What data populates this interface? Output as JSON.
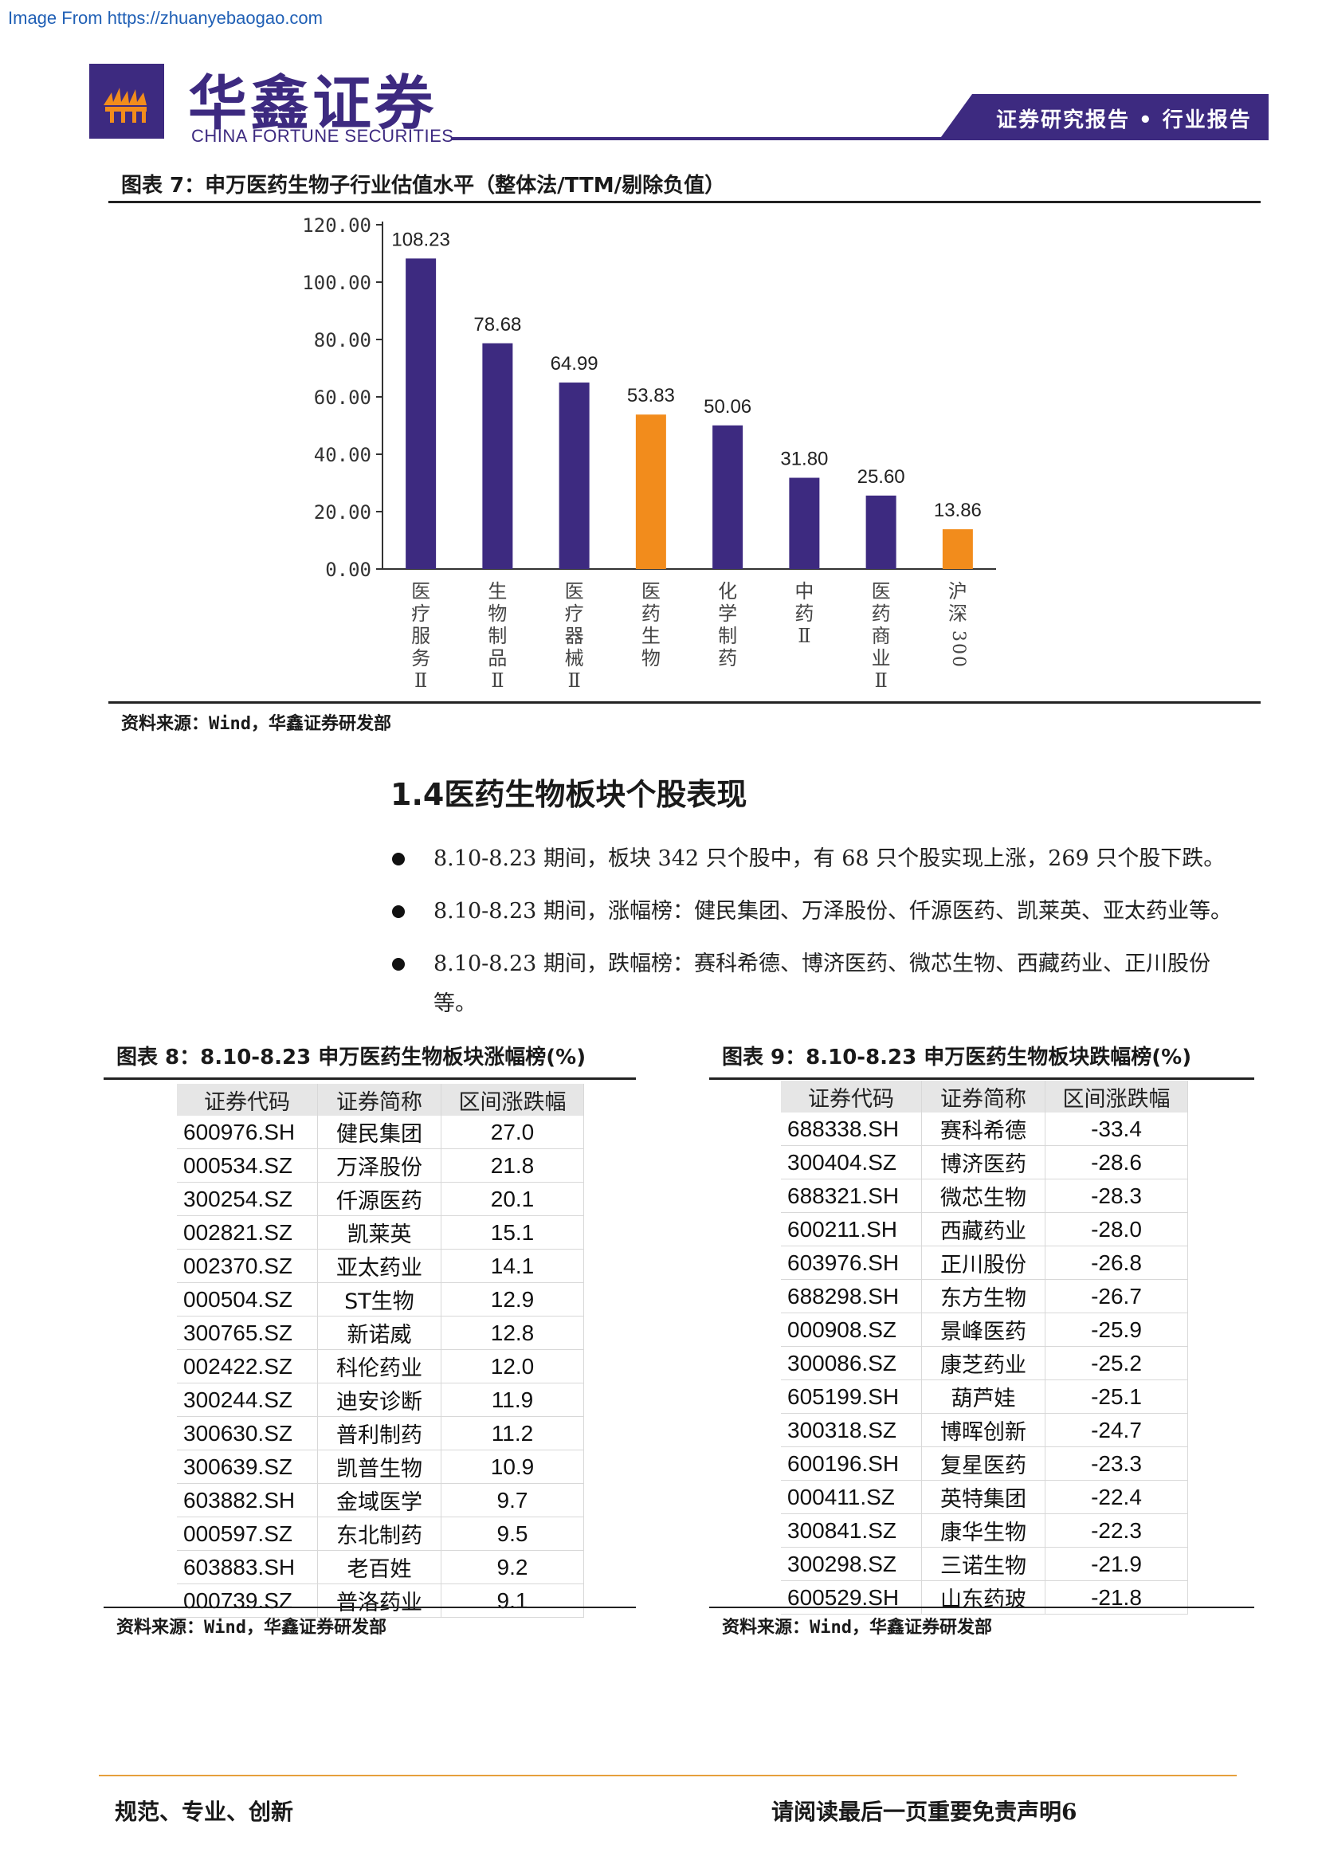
{
  "watermark": "Image From https://zhuanyebaogao.com",
  "header": {
    "logo_cn": "华鑫证券",
    "logo_en": "CHINA FORTUNE SECURITIES",
    "tag": "证券研究报告 • 行业报告",
    "colors": {
      "brand": "#3d2a80"
    }
  },
  "figure7": {
    "title": "图表 7：申万医药生物子行业估值水平（整体法/TTM/剔除负值）",
    "source": "资料来源：Wind，华鑫证券研发部"
  },
  "chart_data": {
    "type": "bar",
    "categories": [
      "医疗服务Ⅱ",
      "生物制品Ⅱ",
      "医疗器械Ⅱ",
      "医药生物",
      "化学制药",
      "中药Ⅱ",
      "医药商业Ⅱ",
      "沪深300"
    ],
    "values": [
      108.23,
      78.68,
      64.99,
      53.83,
      50.06,
      31.8,
      25.6,
      13.86
    ],
    "value_labels": [
      "108.23",
      "78.68",
      "64.99",
      "53.83",
      "50.06",
      "31.80",
      "25.60",
      "13.86"
    ],
    "bar_colors": [
      "#3d2a80",
      "#3d2a80",
      "#3d2a80",
      "#f28c1c",
      "#3d2a80",
      "#3d2a80",
      "#3d2a80",
      "#f28c1c"
    ],
    "ylim": [
      0,
      120
    ],
    "yticks": [
      "0.00",
      "20.00",
      "40.00",
      "60.00",
      "80.00",
      "100.00",
      "120.00"
    ],
    "grid": false,
    "legend": "none"
  },
  "section": {
    "heading": "1.4医药生物板块个股表现",
    "bullets": [
      "8.10-8.23 期间，板块 342 只个股中，有 68 只个股实现上涨，269 只个股下跌。",
      "8.10-8.23 期间，涨幅榜：健民集团、万泽股份、仟源医药、凯莱英、亚太药业等。",
      "8.10-8.23 期间，跌幅榜：赛科希德、博济医药、微芯生物、西藏药业、正川股份",
      "等。"
    ]
  },
  "table8": {
    "title": "图表 8：8.10-8.23 申万医药生物板块涨幅榜(%)",
    "headers": [
      "证券代码",
      "证券简称",
      "区间涨跌幅"
    ],
    "rows": [
      [
        "600976.SH",
        "健民集团",
        "27.0"
      ],
      [
        "000534.SZ",
        "万泽股份",
        "21.8"
      ],
      [
        "300254.SZ",
        "仟源医药",
        "20.1"
      ],
      [
        "002821.SZ",
        "凯莱英",
        "15.1"
      ],
      [
        "002370.SZ",
        "亚太药业",
        "14.1"
      ],
      [
        "000504.SZ",
        "ST生物",
        "12.9"
      ],
      [
        "300765.SZ",
        "新诺威",
        "12.8"
      ],
      [
        "002422.SZ",
        "科伦药业",
        "12.0"
      ],
      [
        "300244.SZ",
        "迪安诊断",
        "11.9"
      ],
      [
        "300630.SZ",
        "普利制药",
        "11.2"
      ],
      [
        "300639.SZ",
        "凯普生物",
        "10.9"
      ],
      [
        "603882.SH",
        "金域医学",
        "9.7"
      ],
      [
        "000597.SZ",
        "东北制药",
        "9.5"
      ],
      [
        "603883.SH",
        "老百姓",
        "9.2"
      ],
      [
        "000739.SZ",
        "普洛药业",
        "9.1"
      ]
    ],
    "source": "资料来源：Wind，华鑫证券研发部"
  },
  "table9": {
    "title": "图表 9：8.10-8.23 申万医药生物板块跌幅榜(%)",
    "headers": [
      "证券代码",
      "证券简称",
      "区间涨跌幅"
    ],
    "rows": [
      [
        "688338.SH",
        "赛科希德",
        "-33.4"
      ],
      [
        "300404.SZ",
        "博济医药",
        "-28.6"
      ],
      [
        "688321.SH",
        "微芯生物",
        "-28.3"
      ],
      [
        "600211.SH",
        "西藏药业",
        "-28.0"
      ],
      [
        "603976.SH",
        "正川股份",
        "-26.8"
      ],
      [
        "688298.SH",
        "东方生物",
        "-26.7"
      ],
      [
        "000908.SZ",
        "景峰医药",
        "-25.9"
      ],
      [
        "300086.SZ",
        "康芝药业",
        "-25.2"
      ],
      [
        "605199.SH",
        "葫芦娃",
        "-25.1"
      ],
      [
        "300318.SZ",
        "博晖创新",
        "-24.7"
      ],
      [
        "600196.SH",
        "复星医药",
        "-23.3"
      ],
      [
        "000411.SZ",
        "英特集团",
        "-22.4"
      ],
      [
        "300841.SZ",
        "康华生物",
        "-22.3"
      ],
      [
        "300298.SZ",
        "三诺生物",
        "-21.9"
      ],
      [
        "600529.SH",
        "山东药玻",
        "-21.8"
      ]
    ],
    "source": "资料来源：Wind，华鑫证券研发部"
  },
  "footer": {
    "left": "规范、专业、创新",
    "right": "请阅读最后一页重要免责声明6"
  }
}
